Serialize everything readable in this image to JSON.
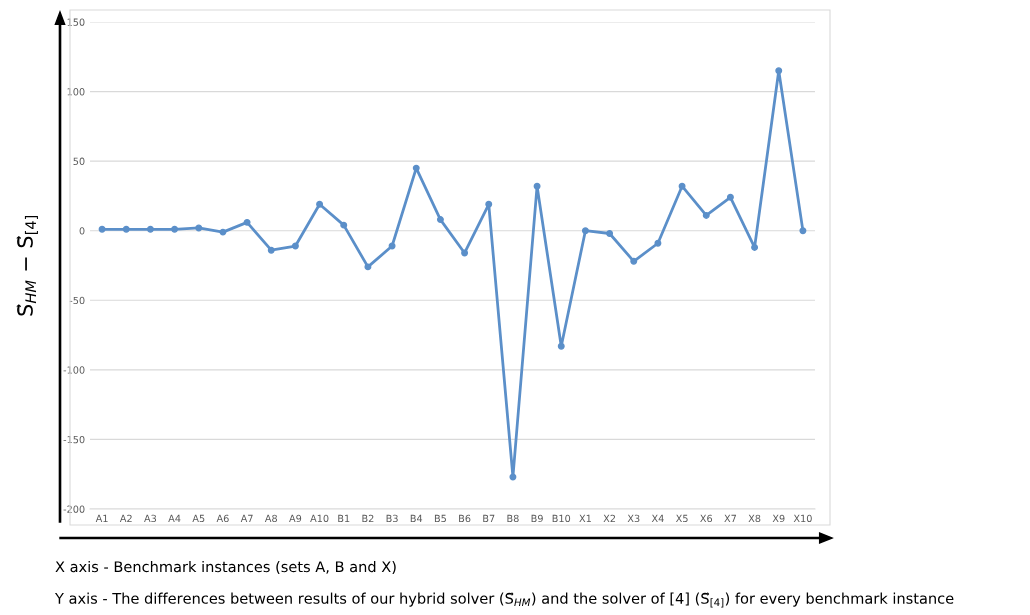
{
  "chart_data": {
    "type": "line",
    "ylabel": "S⃗$_{HM}$ − S⃗$_{[4]}$",
    "categories": [
      "A1",
      "A2",
      "A3",
      "A4",
      "A5",
      "A6",
      "A7",
      "A8",
      "A9",
      "A10",
      "B1",
      "B2",
      "B3",
      "B4",
      "B5",
      "B6",
      "B7",
      "B8",
      "B9",
      "B10",
      "X1",
      "X2",
      "X3",
      "X4",
      "X5",
      "X6",
      "X7",
      "X8",
      "X9",
      "X10"
    ],
    "series": [
      {
        "color": "#5b8fc9",
        "values": [
          1,
          1,
          1,
          1,
          2,
          -1,
          6,
          -14,
          -11,
          19,
          4,
          -26,
          -11,
          45,
          8,
          -16,
          19,
          -177,
          32,
          -83,
          0,
          -2,
          -22,
          -9,
          32,
          11,
          24,
          -12,
          115,
          0
        ]
      }
    ],
    "ylim": [
      -200,
      150
    ],
    "yticks": [
      -200,
      -150,
      -100,
      -50,
      0,
      50,
      100,
      150
    ],
    "grid": "y",
    "marker": "circle",
    "line_style": "solid",
    "legend": false,
    "annotations": [
      "X axis - Benchmark instances (sets A, B and X)",
      "Y axis - The differences between results of our hybrid solver (S⃗$_{HM}$) and the solver of [4] (S⃗$_{[4]}$) for every benchmark instance"
    ]
  }
}
